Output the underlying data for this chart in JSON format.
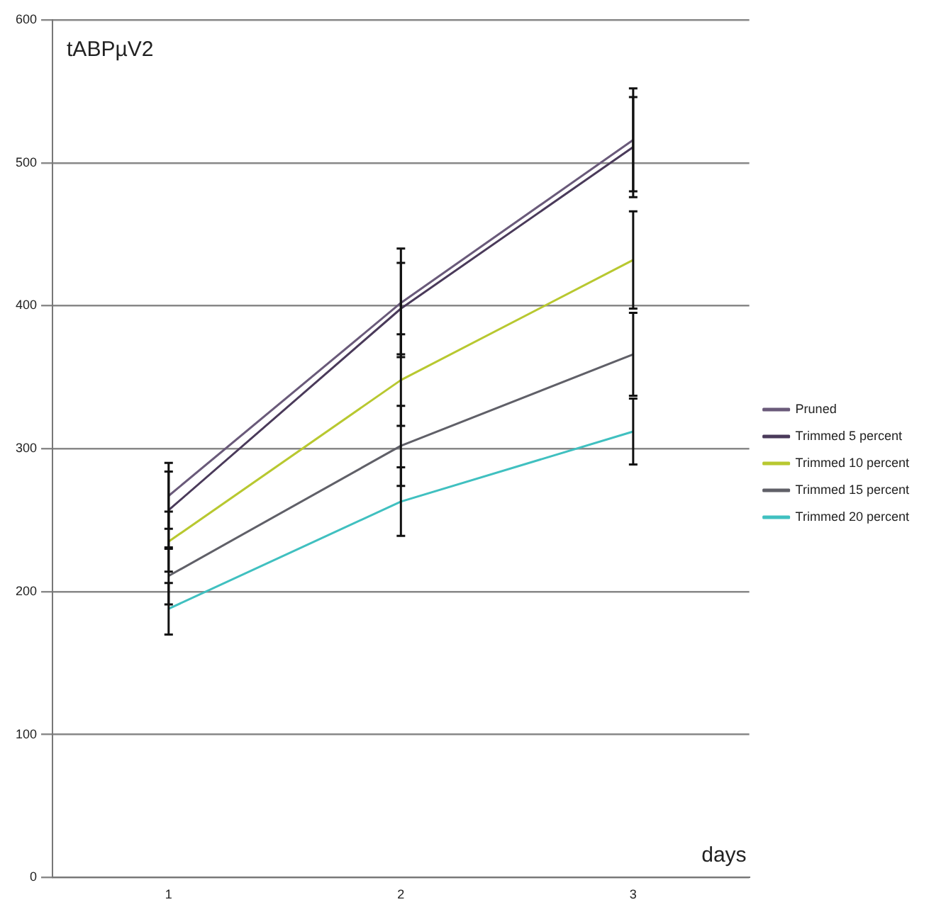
{
  "chart_data": {
    "type": "line",
    "ylabel": "tABPµV2",
    "xlabel": "days",
    "categories": [
      "1",
      "2",
      "3"
    ],
    "ylim": [
      0,
      600
    ],
    "yticks": [
      0,
      100,
      200,
      300,
      400,
      500,
      600
    ],
    "grid": "y",
    "legend": "right",
    "marker": "none",
    "series": [
      {
        "name": "Pruned",
        "color": "#6a5a7a",
        "values": [
          267,
          402,
          516
        ],
        "errors": [
          23,
          38,
          36
        ]
      },
      {
        "name": "Trimmed 5 percent",
        "color": "#4a3a5a",
        "values": [
          257,
          398,
          511
        ],
        "errors": [
          27,
          32,
          35
        ]
      },
      {
        "name": "Trimmed 10 percent",
        "color": "#b8c830",
        "values": [
          235,
          348,
          432
        ],
        "errors": [
          21,
          32,
          34
        ]
      },
      {
        "name": "Trimmed 15 percent",
        "color": "#606068",
        "values": [
          211,
          302,
          366
        ],
        "errors": [
          20,
          28,
          29
        ]
      },
      {
        "name": "Trimmed 20 percent",
        "color": "#40c0c0",
        "values": [
          188,
          263,
          312
        ],
        "errors": [
          18,
          24,
          23
        ]
      }
    ]
  }
}
